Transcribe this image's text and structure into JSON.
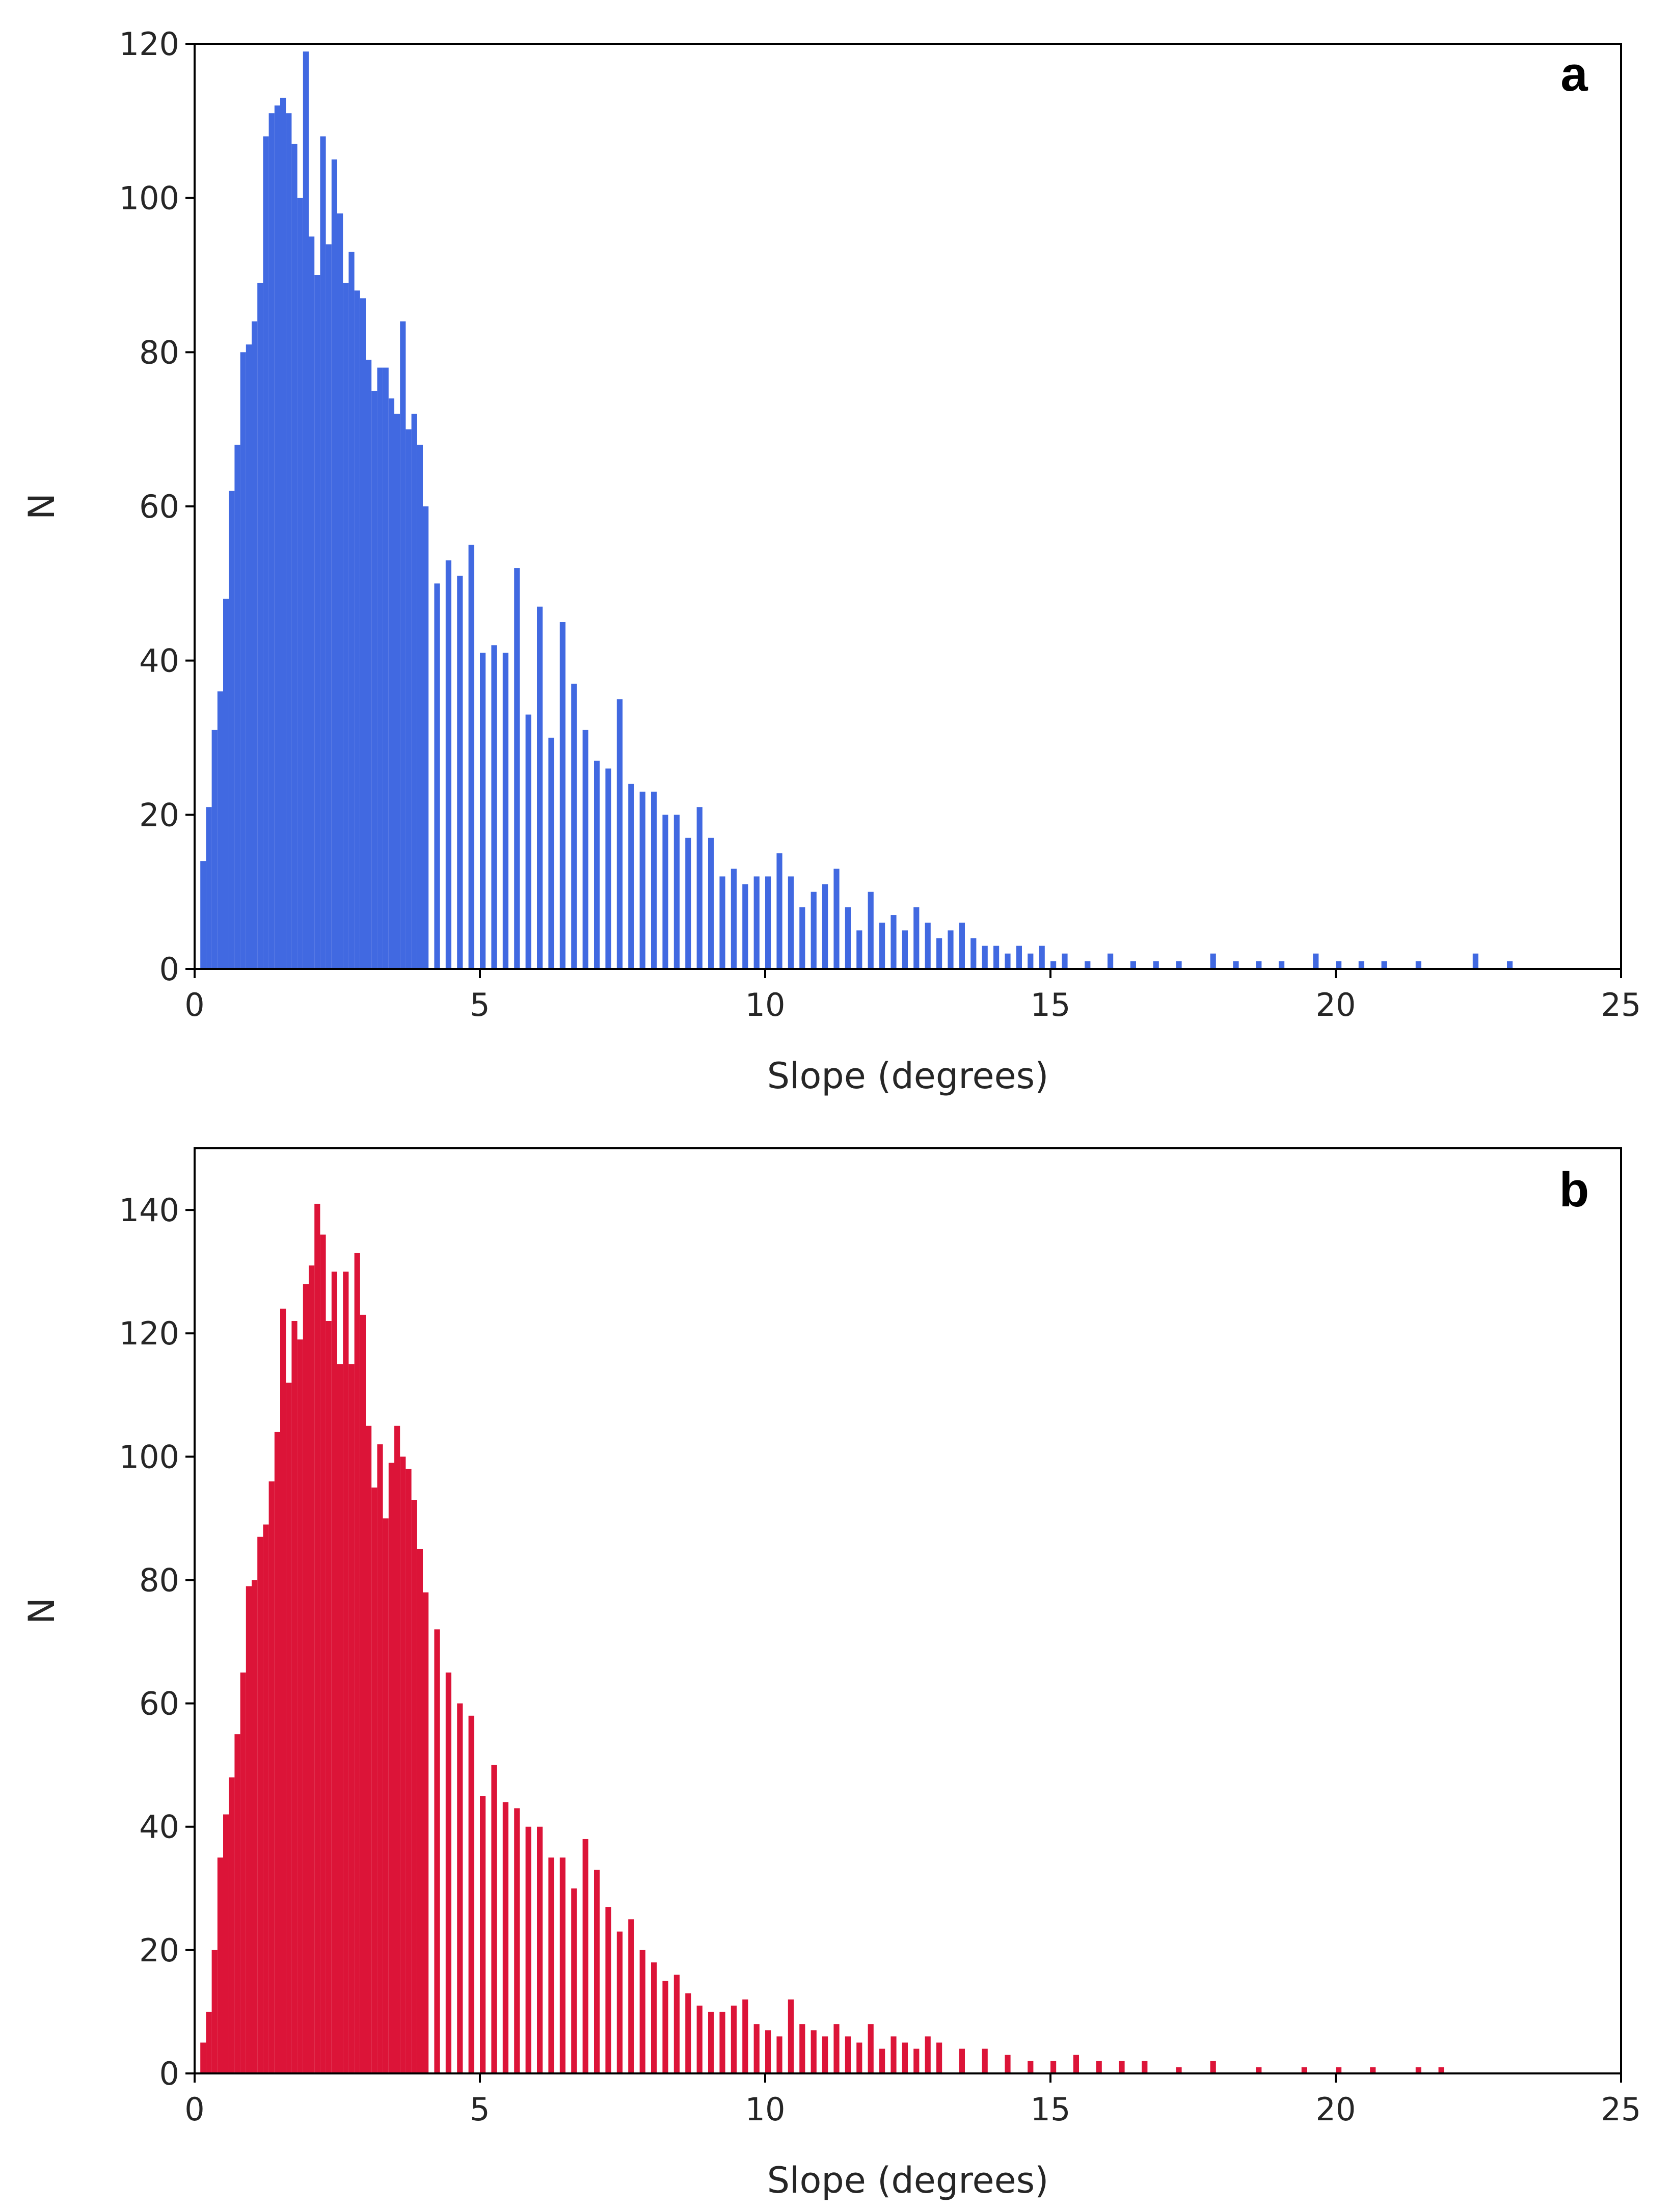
{
  "chart_data": [
    {
      "type": "bar",
      "panel": "a",
      "color": "#4169e1",
      "xlabel": "Slope (degrees)",
      "ylabel": "N",
      "xlim": [
        0,
        25
      ],
      "ylim": [
        0,
        120
      ],
      "xticks": [
        "0",
        "5",
        "10",
        "15",
        "20",
        "25"
      ],
      "yticks": [
        "0",
        "20",
        "40",
        "60",
        "80",
        "100",
        "120"
      ],
      "bin_width": 0.1,
      "x": [
        0.1,
        0.2,
        0.3,
        0.4,
        0.5,
        0.6,
        0.7,
        0.8,
        0.9,
        1.0,
        1.1,
        1.2,
        1.3,
        1.4,
        1.5,
        1.6,
        1.7,
        1.8,
        1.9,
        2.0,
        2.1,
        2.2,
        2.3,
        2.4,
        2.5,
        2.6,
        2.7,
        2.8,
        2.9,
        3.0,
        3.1,
        3.2,
        3.3,
        3.4,
        3.5,
        3.6,
        3.7,
        3.8,
        3.9,
        4.0,
        4.2,
        4.4,
        4.6,
        4.8,
        5.0,
        5.2,
        5.4,
        5.6,
        5.8,
        6.0,
        6.2,
        6.4,
        6.6,
        6.8,
        7.0,
        7.2,
        7.4,
        7.6,
        7.8,
        8.0,
        8.2,
        8.4,
        8.6,
        8.8,
        9.0,
        9.2,
        9.4,
        9.6,
        9.8,
        10.0,
        10.2,
        10.4,
        10.6,
        10.8,
        11.0,
        11.2,
        11.4,
        11.6,
        11.8,
        12.0,
        12.2,
        12.4,
        12.6,
        12.8,
        13.0,
        13.2,
        13.4,
        13.6,
        13.8,
        14.0,
        14.2,
        14.4,
        14.6,
        14.8,
        15.0,
        15.2,
        15.6,
        16.0,
        16.4,
        16.8,
        17.2,
        17.8,
        18.2,
        18.6,
        19.0,
        19.6,
        20.0,
        20.4,
        20.8,
        21.4,
        22.4,
        23.0
      ],
      "values": [
        14,
        21,
        31,
        36,
        48,
        62,
        68,
        80,
        81,
        84,
        89,
        108,
        111,
        112,
        113,
        111,
        107,
        100,
        119,
        95,
        90,
        108,
        94,
        105,
        98,
        89,
        93,
        88,
        87,
        79,
        75,
        78,
        78,
        74,
        72,
        84,
        70,
        72,
        68,
        60,
        50,
        53,
        51,
        55,
        41,
        42,
        41,
        52,
        33,
        47,
        30,
        45,
        37,
        31,
        27,
        26,
        35,
        24,
        23,
        23,
        20,
        20,
        17,
        21,
        17,
        12,
        13,
        11,
        12,
        12,
        15,
        12,
        8,
        10,
        11,
        13,
        8,
        5,
        10,
        6,
        7,
        5,
        8,
        6,
        4,
        5,
        6,
        4,
        3,
        3,
        2,
        3,
        2,
        3,
        1,
        2,
        1,
        2,
        1,
        1,
        1,
        2,
        1,
        1,
        1,
        2,
        1,
        1,
        1,
        1,
        2,
        1
      ]
    },
    {
      "type": "bar",
      "panel": "b",
      "color": "#dc1438",
      "xlabel": "Slope (degrees)",
      "ylabel": "N",
      "xlim": [
        0,
        25
      ],
      "ylim": [
        0,
        150
      ],
      "xticks": [
        "0",
        "5",
        "10",
        "15",
        "20",
        "25"
      ],
      "yticks": [
        "0",
        "20",
        "40",
        "60",
        "80",
        "100",
        "120",
        "140"
      ],
      "bin_width": 0.1,
      "x": [
        0.1,
        0.2,
        0.3,
        0.4,
        0.5,
        0.6,
        0.7,
        0.8,
        0.9,
        1.0,
        1.1,
        1.2,
        1.3,
        1.4,
        1.5,
        1.6,
        1.7,
        1.8,
        1.9,
        2.0,
        2.1,
        2.2,
        2.3,
        2.4,
        2.5,
        2.6,
        2.7,
        2.8,
        2.9,
        3.0,
        3.1,
        3.2,
        3.3,
        3.4,
        3.5,
        3.6,
        3.7,
        3.8,
        3.9,
        4.0,
        4.2,
        4.4,
        4.6,
        4.8,
        5.0,
        5.2,
        5.4,
        5.6,
        5.8,
        6.0,
        6.2,
        6.4,
        6.6,
        6.8,
        7.0,
        7.2,
        7.4,
        7.6,
        7.8,
        8.0,
        8.2,
        8.4,
        8.6,
        8.8,
        9.0,
        9.2,
        9.4,
        9.6,
        9.8,
        10.0,
        10.2,
        10.4,
        10.6,
        10.8,
        11.0,
        11.2,
        11.4,
        11.6,
        11.8,
        12.0,
        12.2,
        12.4,
        12.6,
        12.8,
        13.0,
        13.4,
        13.8,
        14.2,
        14.6,
        15.0,
        15.4,
        15.8,
        16.2,
        16.6,
        17.2,
        17.8,
        18.6,
        19.4,
        20.0,
        20.6,
        21.4,
        21.8
      ],
      "values": [
        5,
        10,
        20,
        35,
        42,
        48,
        55,
        65,
        79,
        80,
        87,
        89,
        96,
        104,
        124,
        112,
        122,
        119,
        128,
        131,
        141,
        136,
        122,
        130,
        115,
        130,
        115,
        133,
        123,
        105,
        95,
        102,
        90,
        99,
        105,
        100,
        98,
        93,
        85,
        78,
        72,
        65,
        60,
        58,
        45,
        50,
        44,
        43,
        40,
        40,
        35,
        35,
        30,
        38,
        33,
        27,
        23,
        25,
        20,
        18,
        15,
        16,
        13,
        11,
        10,
        10,
        11,
        12,
        8,
        7,
        6,
        12,
        8,
        7,
        6,
        8,
        6,
        5,
        8,
        4,
        6,
        5,
        4,
        6,
        5,
        4,
        4,
        3,
        2,
        2,
        3,
        2,
        2,
        2,
        1,
        2,
        1,
        1,
        1,
        1,
        1,
        1
      ]
    }
  ]
}
